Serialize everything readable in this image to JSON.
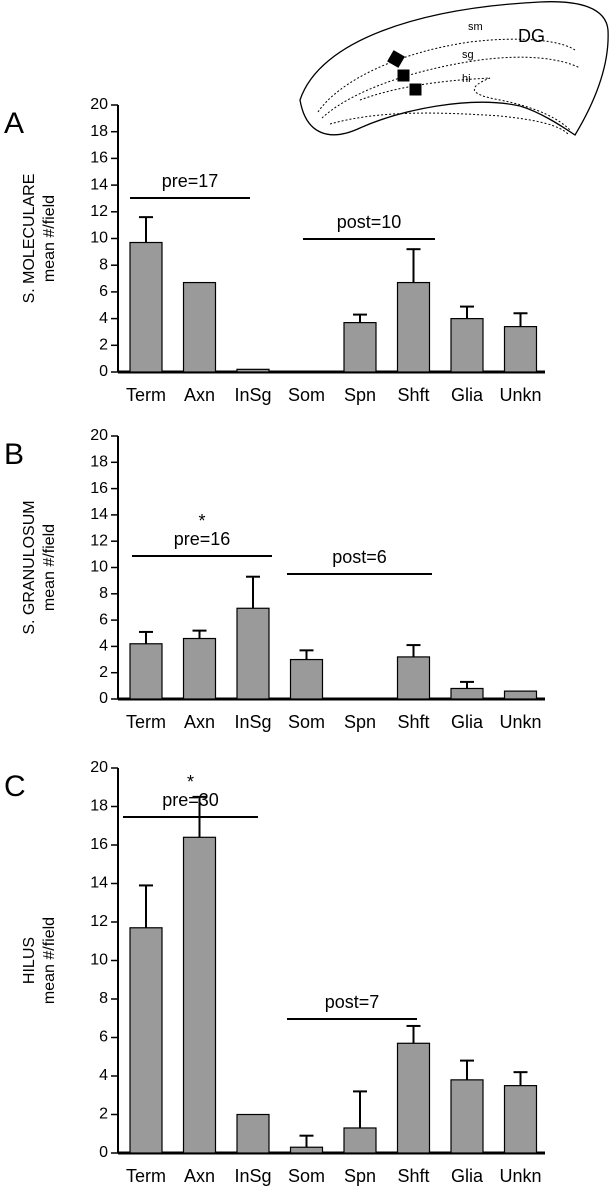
{
  "chart_data": [
    {
      "type": "bar",
      "panel_label": "A",
      "ylabel": [
        "S. MOLECULARE",
        "mean #/field"
      ],
      "categories": [
        "Term",
        "Axn",
        "InSg",
        "Som",
        "Spn",
        "Shft",
        "Glia",
        "Unkn"
      ],
      "values": [
        9.7,
        6.7,
        0.2,
        0,
        3.7,
        6.7,
        4.0,
        3.4
      ],
      "errors": [
        1.9,
        null,
        null,
        null,
        0.6,
        2.5,
        0.9,
        1.0
      ],
      "color": "#9a9a9a",
      "ylim": [
        0,
        20
      ],
      "yticks": [
        0,
        2,
        4,
        6,
        8,
        10,
        12,
        14,
        16,
        18,
        20
      ],
      "annotations": [
        {
          "text": "pre=17"
        },
        {
          "text": "post=10"
        }
      ]
    },
    {
      "type": "bar",
      "panel_label": "B",
      "ylabel": [
        "S. GRANULOSUM",
        "mean #/field"
      ],
      "categories": [
        "Term",
        "Axn",
        "InSg",
        "Som",
        "Spn",
        "Shft",
        "Glia",
        "Unkn"
      ],
      "values": [
        4.2,
        4.6,
        6.9,
        3.0,
        0,
        3.2,
        0.8,
        0.6
      ],
      "errors": [
        0.9,
        0.6,
        2.4,
        0.7,
        null,
        0.9,
        0.5,
        null
      ],
      "color": "#9a9a9a",
      "ylim": [
        0,
        20
      ],
      "yticks": [
        0,
        2,
        4,
        6,
        8,
        10,
        12,
        14,
        16,
        18,
        20
      ],
      "annotations": [
        {
          "text": "pre=16",
          "star": "*"
        },
        {
          "text": "post=6"
        }
      ]
    },
    {
      "type": "bar",
      "panel_label": "C",
      "ylabel": [
        "HILUS",
        "mean #/field"
      ],
      "categories": [
        "Term",
        "Axn",
        "InSg",
        "Som",
        "Spn",
        "Shft",
        "Glia",
        "Unkn"
      ],
      "values": [
        11.7,
        16.4,
        2.0,
        0.3,
        1.3,
        5.7,
        3.8,
        3.5
      ],
      "errors": [
        2.2,
        2.1,
        null,
        0.6,
        1.9,
        0.9,
        1.0,
        0.7
      ],
      "color": "#9a9a9a",
      "ylim": [
        0,
        20
      ],
      "yticks": [
        0,
        2,
        4,
        6,
        8,
        10,
        12,
        14,
        16,
        18,
        20
      ],
      "annotations": [
        {
          "text": "pre=30",
          "star": "*"
        },
        {
          "text": "post=7"
        }
      ]
    }
  ],
  "diagram": {
    "labels": [
      "sm",
      "DG",
      "sg",
      "hi"
    ]
  }
}
